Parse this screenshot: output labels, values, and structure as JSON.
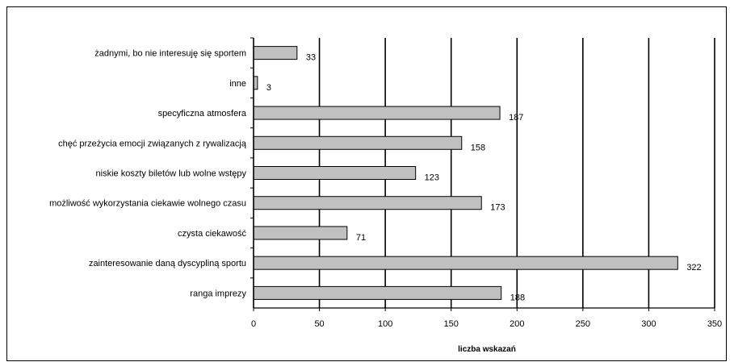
{
  "chart_data": {
    "type": "bar",
    "orientation": "horizontal",
    "categories": [
      "żadnymi, bo nie interesuję się sportem",
      "inne",
      "specyficzna atmosfera",
      "chęć przeżycia emocji związanych z rywalizacją",
      "niskie koszty biletów lub wolne wstępy",
      "możliwość wykorzystania ciekawie wolnego czasu",
      "czysta ciekawość",
      "zainteresowanie daną dyscypliną sportu",
      "ranga imprezy"
    ],
    "values": [
      33,
      3,
      187,
      158,
      123,
      173,
      71,
      322,
      188
    ],
    "xlabel": "liczba wskazań",
    "ylabel": "",
    "xlim": [
      0,
      350
    ],
    "xticks": [
      0,
      50,
      100,
      150,
      200,
      250,
      300,
      350
    ],
    "grid": "vertical major gridlines",
    "legend": "none",
    "bar_color": "#c0c0c0",
    "bar_border_color": "#000000",
    "grid_color": "#000000"
  }
}
